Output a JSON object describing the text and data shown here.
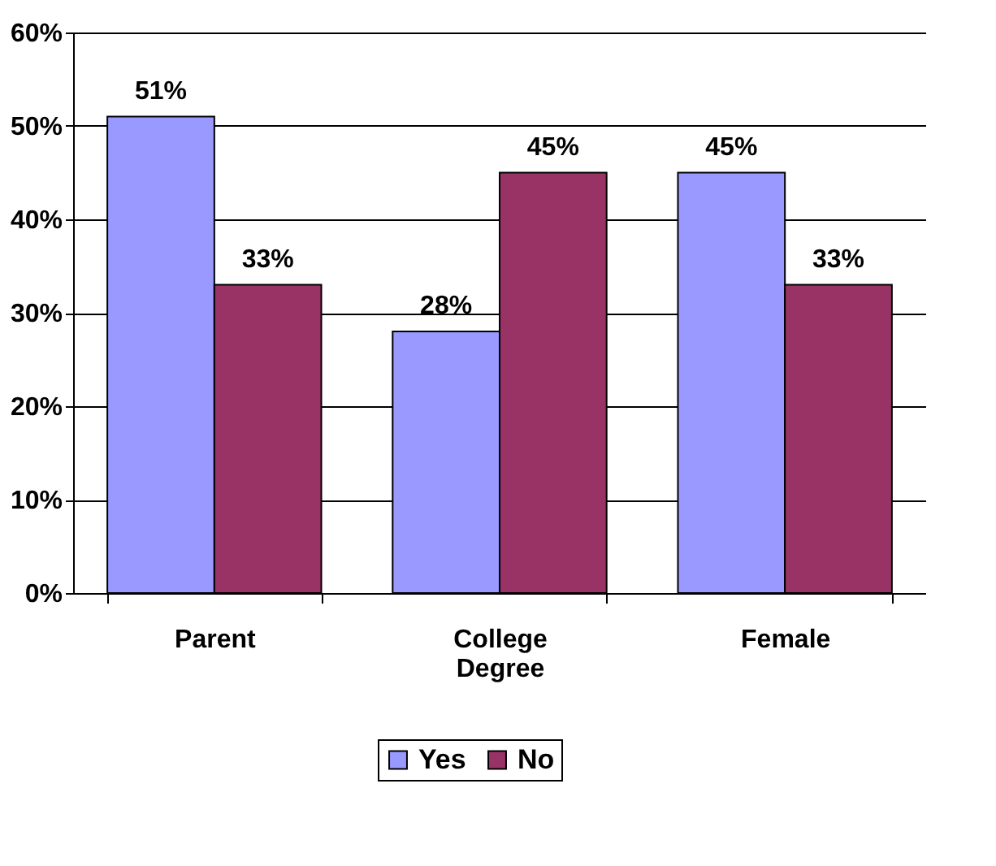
{
  "chart_data": {
    "type": "bar",
    "categories": [
      "Parent",
      "College Degree",
      "Female"
    ],
    "series": [
      {
        "name": "Yes",
        "color": "#9999ff",
        "values": [
          51,
          28,
          45
        ],
        "value_labels": [
          "51%",
          "28%",
          "45%"
        ]
      },
      {
        "name": "No",
        "color": "#993366",
        "values": [
          33,
          45,
          33
        ],
        "value_labels": [
          "33%",
          "45%",
          "33%"
        ]
      }
    ],
    "ylim": [
      0,
      60
    ],
    "yticks": [
      {
        "value": 0,
        "label": "0%"
      },
      {
        "value": 10,
        "label": "10%"
      },
      {
        "value": 20,
        "label": "20%"
      },
      {
        "value": 30,
        "label": "30%"
      },
      {
        "value": 40,
        "label": "40%"
      },
      {
        "value": 50,
        "label": "50%"
      },
      {
        "value": 60,
        "label": "60%"
      }
    ],
    "grid": "y",
    "legend": "bottom"
  }
}
